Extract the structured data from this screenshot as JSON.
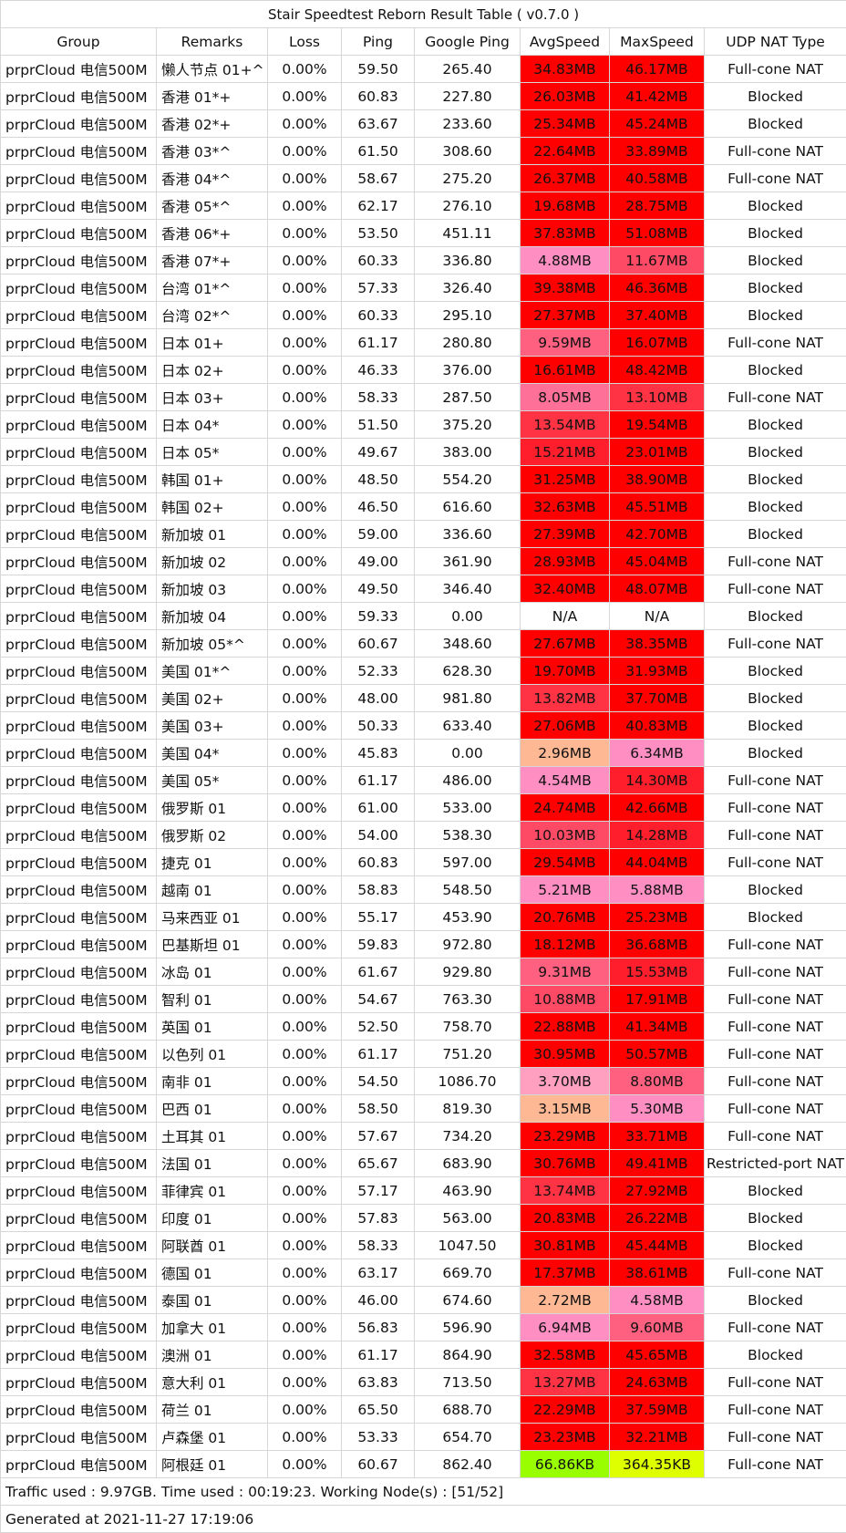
{
  "title": "Stair Speedtest Reborn Result Table ( v0.7.0 )",
  "columns": [
    "Group",
    "Remarks",
    "Loss",
    "Ping",
    "Google Ping",
    "AvgSpeed",
    "MaxSpeed",
    "UDP NAT Type"
  ],
  "speed_colors": {
    "na": "#ffffff",
    "under_100KB": "#99ff00",
    "under_1MB": "#ddff00",
    "under_3.5MB": "#ffb894",
    "under_4MB": "#ffa0c0",
    "under_7MB": "#ff8ec3",
    "under_8.5MB": "#ff7098",
    "under_10MB": "#ff6080",
    "under_12MB": "#ff4a66",
    "under_14MB": "#ff3344",
    "under_16MB": "#ff1e2c",
    "above": "#ff0000"
  },
  "rows": [
    [
      "prprCloud 电信500M",
      "懒人节点 01+^",
      "0.00%",
      "59.50",
      "265.40",
      "34.83MB",
      "46.17MB",
      "Full-cone NAT"
    ],
    [
      "prprCloud 电信500M",
      "香港 01*+",
      "0.00%",
      "60.83",
      "227.80",
      "26.03MB",
      "41.42MB",
      "Blocked"
    ],
    [
      "prprCloud 电信500M",
      "香港 02*+",
      "0.00%",
      "63.67",
      "233.60",
      "25.34MB",
      "45.24MB",
      "Blocked"
    ],
    [
      "prprCloud 电信500M",
      "香港 03*^",
      "0.00%",
      "61.50",
      "308.60",
      "22.64MB",
      "33.89MB",
      "Full-cone NAT"
    ],
    [
      "prprCloud 电信500M",
      "香港 04*^",
      "0.00%",
      "58.67",
      "275.20",
      "26.37MB",
      "40.58MB",
      "Full-cone NAT"
    ],
    [
      "prprCloud 电信500M",
      "香港 05*^",
      "0.00%",
      "62.17",
      "276.10",
      "19.68MB",
      "28.75MB",
      "Blocked"
    ],
    [
      "prprCloud 电信500M",
      "香港 06*+",
      "0.00%",
      "53.50",
      "451.11",
      "37.83MB",
      "51.08MB",
      "Blocked"
    ],
    [
      "prprCloud 电信500M",
      "香港 07*+",
      "0.00%",
      "60.33",
      "336.80",
      "4.88MB",
      "11.67MB",
      "Blocked"
    ],
    [
      "prprCloud 电信500M",
      "台湾 01*^",
      "0.00%",
      "57.33",
      "326.40",
      "39.38MB",
      "46.36MB",
      "Blocked"
    ],
    [
      "prprCloud 电信500M",
      "台湾 02*^",
      "0.00%",
      "60.33",
      "295.10",
      "27.37MB",
      "37.40MB",
      "Blocked"
    ],
    [
      "prprCloud 电信500M",
      "日本 01+",
      "0.00%",
      "61.17",
      "280.80",
      "9.59MB",
      "16.07MB",
      "Full-cone NAT"
    ],
    [
      "prprCloud 电信500M",
      "日本 02+",
      "0.00%",
      "46.33",
      "376.00",
      "16.61MB",
      "48.42MB",
      "Blocked"
    ],
    [
      "prprCloud 电信500M",
      "日本 03+",
      "0.00%",
      "58.33",
      "287.50",
      "8.05MB",
      "13.10MB",
      "Full-cone NAT"
    ],
    [
      "prprCloud 电信500M",
      "日本 04*",
      "0.00%",
      "51.50",
      "375.20",
      "13.54MB",
      "19.54MB",
      "Blocked"
    ],
    [
      "prprCloud 电信500M",
      "日本 05*",
      "0.00%",
      "49.67",
      "383.00",
      "15.21MB",
      "23.01MB",
      "Blocked"
    ],
    [
      "prprCloud 电信500M",
      "韩国 01+",
      "0.00%",
      "48.50",
      "554.20",
      "31.25MB",
      "38.90MB",
      "Blocked"
    ],
    [
      "prprCloud 电信500M",
      "韩国 02+",
      "0.00%",
      "46.50",
      "616.60",
      "32.63MB",
      "45.51MB",
      "Blocked"
    ],
    [
      "prprCloud 电信500M",
      "新加坡 01",
      "0.00%",
      "59.00",
      "336.60",
      "27.39MB",
      "42.70MB",
      "Blocked"
    ],
    [
      "prprCloud 电信500M",
      "新加坡 02",
      "0.00%",
      "49.00",
      "361.90",
      "28.93MB",
      "45.04MB",
      "Full-cone NAT"
    ],
    [
      "prprCloud 电信500M",
      "新加坡 03",
      "0.00%",
      "49.50",
      "346.40",
      "32.40MB",
      "48.07MB",
      "Full-cone NAT"
    ],
    [
      "prprCloud 电信500M",
      "新加坡 04",
      "0.00%",
      "59.33",
      "0.00",
      "N/A",
      "N/A",
      "Blocked"
    ],
    [
      "prprCloud 电信500M",
      "新加坡 05*^",
      "0.00%",
      "60.67",
      "348.60",
      "27.67MB",
      "38.35MB",
      "Full-cone NAT"
    ],
    [
      "prprCloud 电信500M",
      "美国 01*^",
      "0.00%",
      "52.33",
      "628.30",
      "19.70MB",
      "31.93MB",
      "Blocked"
    ],
    [
      "prprCloud 电信500M",
      "美国 02+",
      "0.00%",
      "48.00",
      "981.80",
      "13.82MB",
      "37.70MB",
      "Blocked"
    ],
    [
      "prprCloud 电信500M",
      "美国 03+",
      "0.00%",
      "50.33",
      "633.40",
      "27.06MB",
      "40.83MB",
      "Blocked"
    ],
    [
      "prprCloud 电信500M",
      "美国 04*",
      "0.00%",
      "45.83",
      "0.00",
      "2.96MB",
      "6.34MB",
      "Blocked"
    ],
    [
      "prprCloud 电信500M",
      "美国 05*",
      "0.00%",
      "61.17",
      "486.00",
      "4.54MB",
      "14.30MB",
      "Full-cone NAT"
    ],
    [
      "prprCloud 电信500M",
      "俄罗斯 01",
      "0.00%",
      "61.00",
      "533.00",
      "24.74MB",
      "42.66MB",
      "Full-cone NAT"
    ],
    [
      "prprCloud 电信500M",
      "俄罗斯 02",
      "0.00%",
      "54.00",
      "538.30",
      "10.03MB",
      "14.28MB",
      "Full-cone NAT"
    ],
    [
      "prprCloud 电信500M",
      "捷克 01",
      "0.00%",
      "60.83",
      "597.00",
      "29.54MB",
      "44.04MB",
      "Full-cone NAT"
    ],
    [
      "prprCloud 电信500M",
      "越南 01",
      "0.00%",
      "58.83",
      "548.50",
      "5.21MB",
      "5.88MB",
      "Blocked"
    ],
    [
      "prprCloud 电信500M",
      "马来西亚 01",
      "0.00%",
      "55.17",
      "453.90",
      "20.76MB",
      "25.23MB",
      "Blocked"
    ],
    [
      "prprCloud 电信500M",
      "巴基斯坦 01",
      "0.00%",
      "59.83",
      "972.80",
      "18.12MB",
      "36.68MB",
      "Full-cone NAT"
    ],
    [
      "prprCloud 电信500M",
      "冰岛 01",
      "0.00%",
      "61.67",
      "929.80",
      "9.31MB",
      "15.53MB",
      "Full-cone NAT"
    ],
    [
      "prprCloud 电信500M",
      "智利 01",
      "0.00%",
      "54.67",
      "763.30",
      "10.88MB",
      "17.91MB",
      "Full-cone NAT"
    ],
    [
      "prprCloud 电信500M",
      "英国 01",
      "0.00%",
      "52.50",
      "758.70",
      "22.88MB",
      "41.34MB",
      "Full-cone NAT"
    ],
    [
      "prprCloud 电信500M",
      "以色列 01",
      "0.00%",
      "61.17",
      "751.20",
      "30.95MB",
      "50.57MB",
      "Full-cone NAT"
    ],
    [
      "prprCloud 电信500M",
      "南非 01",
      "0.00%",
      "54.50",
      "1086.70",
      "3.70MB",
      "8.80MB",
      "Full-cone NAT"
    ],
    [
      "prprCloud 电信500M",
      "巴西 01",
      "0.00%",
      "58.50",
      "819.30",
      "3.15MB",
      "5.30MB",
      "Full-cone NAT"
    ],
    [
      "prprCloud 电信500M",
      "土耳其 01",
      "0.00%",
      "57.67",
      "734.20",
      "23.29MB",
      "33.71MB",
      "Full-cone NAT"
    ],
    [
      "prprCloud 电信500M",
      "法国 01",
      "0.00%",
      "65.67",
      "683.90",
      "30.76MB",
      "49.41MB",
      "Restricted-port NAT"
    ],
    [
      "prprCloud 电信500M",
      "菲律宾 01",
      "0.00%",
      "57.17",
      "463.90",
      "13.74MB",
      "27.92MB",
      "Blocked"
    ],
    [
      "prprCloud 电信500M",
      "印度 01",
      "0.00%",
      "57.83",
      "563.00",
      "20.83MB",
      "26.22MB",
      "Blocked"
    ],
    [
      "prprCloud 电信500M",
      "阿联酋 01",
      "0.00%",
      "58.33",
      "1047.50",
      "30.81MB",
      "45.44MB",
      "Blocked"
    ],
    [
      "prprCloud 电信500M",
      "德国 01",
      "0.00%",
      "63.17",
      "669.70",
      "17.37MB",
      "38.61MB",
      "Full-cone NAT"
    ],
    [
      "prprCloud 电信500M",
      "泰国 01",
      "0.00%",
      "46.00",
      "674.60",
      "2.72MB",
      "4.58MB",
      "Blocked"
    ],
    [
      "prprCloud 电信500M",
      "加拿大 01",
      "0.00%",
      "56.83",
      "596.90",
      "6.94MB",
      "9.60MB",
      "Full-cone NAT"
    ],
    [
      "prprCloud 电信500M",
      "澳洲 01",
      "0.00%",
      "61.17",
      "864.90",
      "32.58MB",
      "45.65MB",
      "Blocked"
    ],
    [
      "prprCloud 电信500M",
      "意大利 01",
      "0.00%",
      "63.83",
      "713.50",
      "13.27MB",
      "24.63MB",
      "Full-cone NAT"
    ],
    [
      "prprCloud 电信500M",
      "荷兰 01",
      "0.00%",
      "65.50",
      "688.70",
      "22.29MB",
      "37.59MB",
      "Full-cone NAT"
    ],
    [
      "prprCloud 电信500M",
      "卢森堡 01",
      "0.00%",
      "53.33",
      "654.70",
      "23.23MB",
      "32.21MB",
      "Full-cone NAT"
    ],
    [
      "prprCloud 电信500M",
      "阿根廷 01",
      "0.00%",
      "60.67",
      "862.40",
      "66.86KB",
      "364.35KB",
      "Full-cone NAT"
    ]
  ],
  "footer": {
    "summary": "Traffic used : 9.97GB. Time used : 00:19:23. Working Node(s) : [51/52]",
    "generated": "Generated at 2021-11-27 17:19:06"
  }
}
